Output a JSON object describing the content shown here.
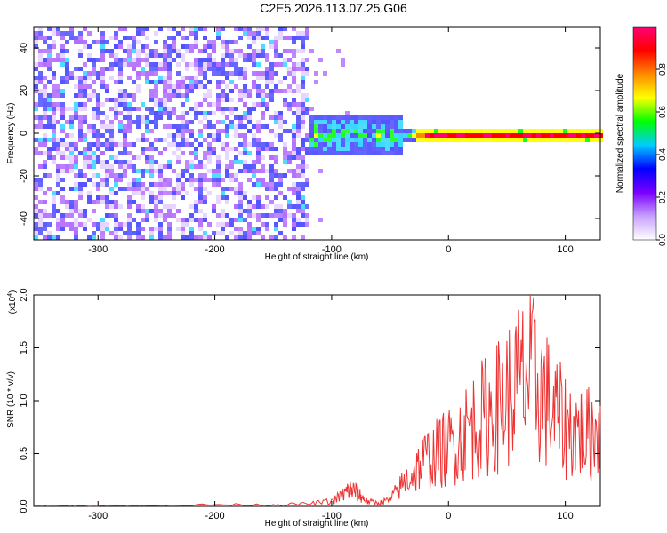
{
  "title": "C2E5.2026.113.07.25.G06",
  "chart_data": [
    {
      "type": "heatmap",
      "title": "C2E5.2026.113.07.25.G06",
      "xlabel": "Height of straight line (km)",
      "ylabel": "Frequency (Hz)",
      "xlim": [
        -355,
        130
      ],
      "ylim": [
        -50,
        50
      ],
      "xticks": [
        -300,
        -200,
        -100,
        0,
        100
      ],
      "yticks": [
        -40,
        -20,
        0,
        20,
        40
      ],
      "colorbar": {
        "label": "Normalized spectral amplitude",
        "range": [
          0.0,
          1.0
        ],
        "ticks": [
          "0.0",
          "0.2",
          "0.4",
          "0.6",
          "0.8"
        ],
        "colors": [
          "#ffffff",
          "#c8a0ff",
          "#7a00ff",
          "#0000ff",
          "#00ccff",
          "#00ff00",
          "#ffff00",
          "#ff8800",
          "#ff0000",
          "#ff0077"
        ]
      },
      "description_values": {
        "noise_region_x": [
          -355,
          -120
        ],
        "signal_center_freq": 0,
        "signal_band_halfwidth_hz": [
          10,
          3
        ],
        "strong_region_x": [
          -30,
          130
        ]
      }
    },
    {
      "type": "line",
      "xlabel": "Height of straight line (km)",
      "ylabel": "SNR (10 * v/v)",
      "scale_label": "(x10",
      "scale_exp": "4",
      "xlim": [
        -355,
        130
      ],
      "ylim": [
        0.0,
        2.0
      ],
      "xticks": [
        -300,
        -200,
        -100,
        0,
        100
      ],
      "yticks": [
        "0.0",
        "0.5",
        "1.0",
        "1.5",
        "2.0"
      ],
      "series": [
        {
          "name": "SNR",
          "color": "#ee3333",
          "x": [
            -355,
            -300,
            -250,
            -200,
            -150,
            -120,
            -100,
            -90,
            -85,
            -80,
            -75,
            -70,
            -60,
            -50,
            -40,
            -30,
            -20,
            -10,
            0,
            10,
            20,
            30,
            40,
            50,
            60,
            70,
            80,
            90,
            100,
            110,
            120,
            130
          ],
          "y": [
            0.01,
            0.01,
            0.01,
            0.02,
            0.02,
            0.03,
            0.06,
            0.14,
            0.2,
            0.18,
            0.12,
            0.06,
            0.04,
            0.08,
            0.25,
            0.4,
            0.55,
            0.62,
            0.7,
            0.82,
            0.95,
            1.05,
            1.15,
            1.3,
            1.45,
            1.55,
            1.35,
            1.1,
            0.95,
            0.9,
            0.85,
            0.95
          ]
        }
      ]
    }
  ]
}
